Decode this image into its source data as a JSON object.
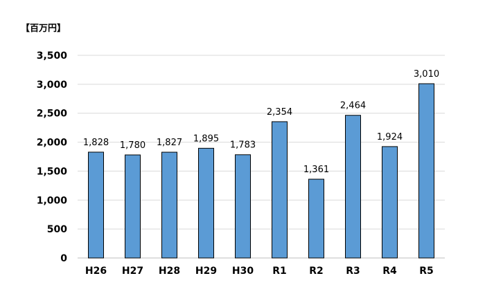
{
  "chart_data": {
    "type": "bar",
    "unit_label": "【百万円】",
    "categories": [
      "H26",
      "H27",
      "H28",
      "H29",
      "H30",
      "R1",
      "R2",
      "R3",
      "R4",
      "R5"
    ],
    "values": [
      1828,
      1780,
      1827,
      1895,
      1783,
      2354,
      1361,
      2464,
      1924,
      3010
    ],
    "data_labels": [
      "1,828",
      "1,780",
      "1,827",
      "1,895",
      "1,783",
      "2,354",
      "1,361",
      "2,464",
      "1,924",
      "3,010"
    ],
    "y_ticks": [
      0,
      500,
      1000,
      1500,
      2000,
      2500,
      3000,
      3500
    ],
    "y_tick_labels": [
      "0",
      "500",
      "1,000",
      "1,500",
      "2,000",
      "2,500",
      "3,000",
      "3,500"
    ],
    "ylim": [
      0,
      3500
    ],
    "grid": true,
    "legend": "none",
    "bar_color": "#5b9bd5"
  }
}
